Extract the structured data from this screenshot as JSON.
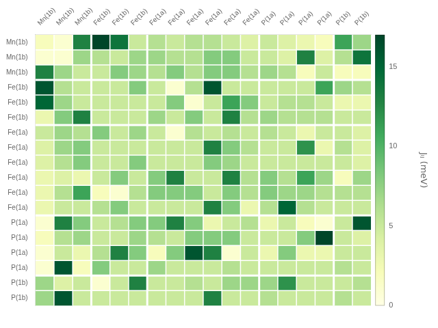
{
  "chart_data": {
    "type": "heatmap",
    "categories": [
      "Mn(1b)",
      "Mn(1b)",
      "Mn(1b)",
      "Fe(1b)",
      "Fe(1b)",
      "Fe(1b)",
      "Fe(1a)",
      "Fe(1a)",
      "Fe(1a)",
      "Fe(1a)",
      "Fe(1a)",
      "Fe(1a)",
      "P(1a)",
      "P(1a)",
      "P(1a)",
      "P(1a)",
      "P(1b)",
      "P(1b)"
    ],
    "rows": [
      "Mn(1b)",
      "Mn(1b)",
      "Mn(1b)",
      "Fe(1b)",
      "Fe(1b)",
      "Fe(1b)",
      "Fe(1a)",
      "Fe(1a)",
      "Fe(1a)",
      "Fe(1a)",
      "Fe(1a)",
      "Fe(1a)",
      "P(1a)",
      "P(1a)",
      "P(1a)",
      "P(1a)",
      "P(1b)",
      "P(1b)"
    ],
    "values": [
      [
        2,
        1,
        13,
        17,
        14,
        5,
        6,
        5,
        6,
        6,
        5,
        4,
        5,
        4,
        3,
        2,
        11,
        7
      ],
      [
        1,
        1,
        7,
        6,
        5,
        7,
        7,
        6,
        6,
        8,
        8,
        5,
        5,
        4,
        13,
        4,
        6,
        14
      ],
      [
        13,
        7,
        5,
        5,
        8,
        7,
        6,
        8,
        6,
        8,
        8,
        6,
        7,
        6,
        2,
        5,
        2,
        2
      ],
      [
        16,
        6,
        5,
        5,
        5,
        8,
        5,
        1,
        6,
        16,
        5,
        5,
        5,
        5,
        5,
        11,
        7,
        6
      ],
      [
        15,
        7,
        5,
        5,
        5,
        5,
        5,
        8,
        1,
        5,
        11,
        8,
        5,
        6,
        6,
        5,
        3,
        3
      ],
      [
        3,
        8,
        13,
        5,
        5,
        5,
        7,
        5,
        8,
        5,
        13,
        6,
        7,
        6,
        6,
        6,
        5,
        5
      ],
      [
        5,
        7,
        6,
        8,
        5,
        7,
        5,
        1,
        6,
        5,
        6,
        5,
        6,
        5,
        3,
        5,
        5,
        4
      ],
      [
        4,
        7,
        8,
        5,
        5,
        5,
        5,
        5,
        5,
        13,
        8,
        6,
        5,
        5,
        12,
        3,
        6,
        4
      ],
      [
        4,
        6,
        8,
        5,
        5,
        8,
        5,
        5,
        5,
        8,
        7,
        5,
        5,
        5,
        5,
        5,
        5,
        4
      ],
      [
        3,
        4,
        3,
        5,
        8,
        5,
        8,
        13,
        5,
        5,
        13,
        6,
        8,
        6,
        11,
        7,
        2,
        7
      ],
      [
        3,
        6,
        11,
        2,
        1,
        6,
        8,
        8,
        8,
        5,
        8,
        6,
        8,
        7,
        7,
        6,
        6,
        6
      ],
      [
        3,
        5,
        5,
        6,
        8,
        5,
        5,
        5,
        5,
        13,
        8,
        3,
        6,
        15,
        6,
        5,
        5,
        5
      ],
      [
        1,
        13,
        8,
        5,
        6,
        8,
        8,
        13,
        8,
        3,
        5,
        6,
        3,
        5,
        2,
        1,
        5,
        16
      ],
      [
        2,
        6,
        7,
        5,
        5,
        7,
        6,
        5,
        8,
        8,
        8,
        5,
        5,
        5,
        8,
        17,
        5,
        4
      ],
      [
        1,
        5,
        3,
        6,
        13,
        8,
        2,
        8,
        16,
        13,
        1,
        5,
        3,
        8,
        3,
        3,
        5,
        5
      ],
      [
        1,
        16,
        2,
        8,
        5,
        5,
        7,
        5,
        5,
        5,
        6,
        5,
        5,
        5,
        5,
        5,
        6,
        5
      ],
      [
        7,
        4,
        5,
        1,
        5,
        13,
        5,
        5,
        6,
        5,
        7,
        7,
        7,
        12,
        5,
        5,
        5,
        6
      ],
      [
        7,
        16,
        5,
        5,
        5,
        5,
        5,
        5,
        5,
        13,
        5,
        5,
        6,
        5,
        5,
        5,
        6,
        5
      ]
    ],
    "color": "YlGn",
    "colorbar_label": "Jᵢⱼ (meV)",
    "colorbar_lim": [
      0,
      17
    ],
    "colorbar_ticks": [
      0,
      5,
      10,
      15
    ]
  }
}
